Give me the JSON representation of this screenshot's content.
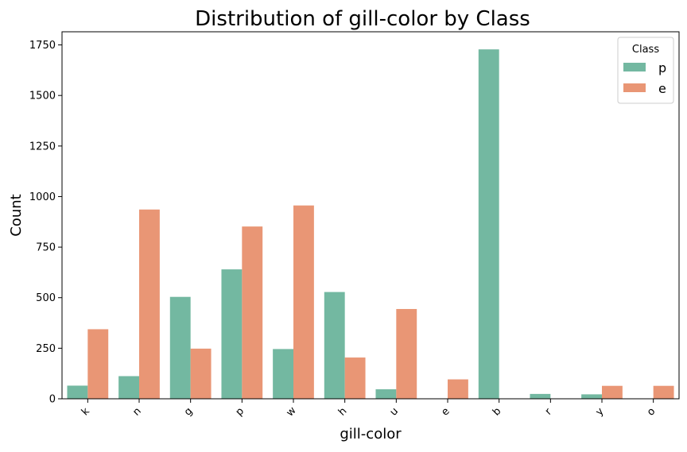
{
  "colors": {
    "p": "#73b8a1",
    "e": "#e99675"
  },
  "chart_data": {
    "type": "bar",
    "title": "Distribution of gill-color by Class",
    "xlabel": "gill-color",
    "ylabel": "Count",
    "categories": [
      "k",
      "n",
      "g",
      "p",
      "w",
      "h",
      "u",
      "e",
      "b",
      "r",
      "y",
      "o"
    ],
    "series": [
      {
        "name": "p",
        "values": [
          65,
          112,
          504,
          640,
          246,
          528,
          47,
          0,
          1728,
          24,
          22,
          0
        ]
      },
      {
        "name": "e",
        "values": [
          344,
          936,
          248,
          852,
          956,
          204,
          444,
          96,
          0,
          0,
          64,
          64
        ]
      }
    ],
    "ylim": [
      0,
      1815
    ],
    "yticks": [
      0,
      250,
      500,
      750,
      1000,
      1250,
      1500,
      1750
    ],
    "ytick_labels": [
      "0",
      "250",
      "500",
      "750",
      "1000",
      "1250",
      "1500",
      "1750"
    ],
    "grid": false,
    "legend": {
      "title": "Class",
      "placement": "top-right",
      "entries": [
        "p",
        "e"
      ]
    }
  }
}
